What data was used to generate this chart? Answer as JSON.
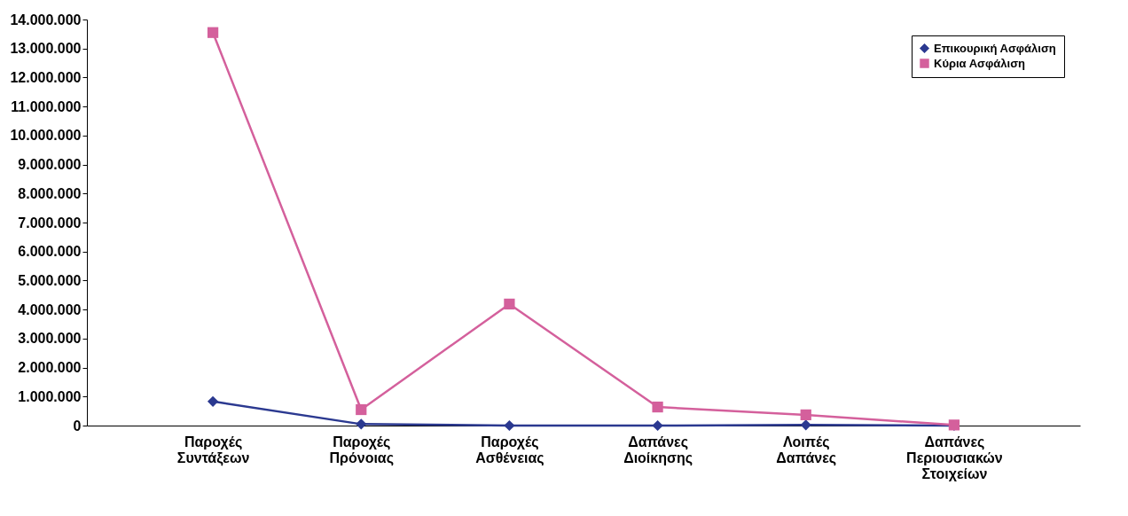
{
  "chart_data": {
    "type": "line",
    "categories": [
      "Παροχές Συντάξεων",
      "Παροχές Πρόνοιας",
      "Παροχές Ασθένειας",
      "Δαπάνες Διοίκησης",
      "Λοιπές Δαπάνες",
      "Δαπάνες Περιουσιακών Στοιχείων"
    ],
    "series": [
      {
        "name": "Επικουρική Ασφάλιση",
        "color": "#2b3990",
        "marker": "diamond",
        "values": [
          830000,
          50000,
          0,
          0,
          20000,
          0
        ]
      },
      {
        "name": "Κύρια Ασφάλιση",
        "color": "#d4609c",
        "marker": "square",
        "values": [
          13550000,
          550000,
          4190000,
          640000,
          370000,
          20000
        ]
      }
    ],
    "ylim": [
      0,
      14000000
    ],
    "yticks": [
      0,
      {
        "value": 1000000,
        "label": "1.000.000"
      },
      {
        "value": 2000000,
        "label": "2.000.000"
      },
      {
        "value": 3000000,
        "label": "3.000.000"
      },
      {
        "value": 4000000,
        "label": "4.000.000"
      },
      {
        "value": 5000000,
        "label": "5.000.000"
      },
      {
        "value": 6000000,
        "label": "6.000.000"
      },
      {
        "value": 7000000,
        "label": "7.000.000"
      },
      {
        "value": 8000000,
        "label": "8.000.000"
      },
      {
        "value": 9000000,
        "label": "9.000.000"
      },
      {
        "value": 10000000,
        "label": "10.000.000"
      },
      {
        "value": 11000000,
        "label": "11.000.000"
      },
      {
        "value": 12000000,
        "label": "12.000.000"
      },
      {
        "value": 13000000,
        "label": "13.000.000"
      },
      {
        "value": 14000000,
        "label": "14.000.000"
      }
    ],
    "grid": false,
    "legend": "top right"
  }
}
